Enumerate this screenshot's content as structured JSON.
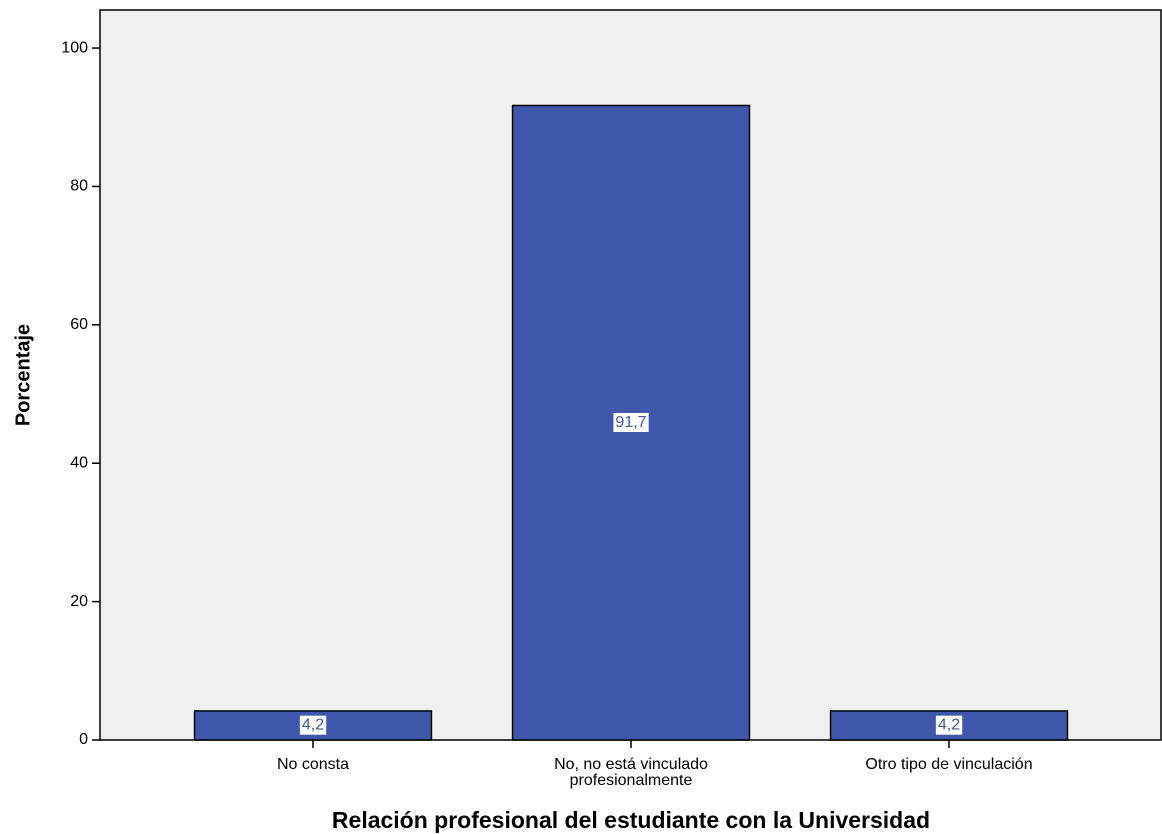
{
  "chart_data": {
    "type": "bar",
    "x_label": "Relación profesional del estudiante con la Universidad",
    "y_label": "Porcentaje",
    "categories": [
      "No consta",
      "No, no está vinculado profesionalmente",
      "Otro tipo de vinculación"
    ],
    "values": [
      4.2,
      91.7,
      4.2
    ],
    "value_labels": [
      "4,2",
      "91,7",
      "4,2"
    ],
    "color": "#3f58ab",
    "ylim": [
      0,
      105.5
    ],
    "yticks": [
      0,
      20,
      40,
      60,
      80,
      100
    ]
  }
}
